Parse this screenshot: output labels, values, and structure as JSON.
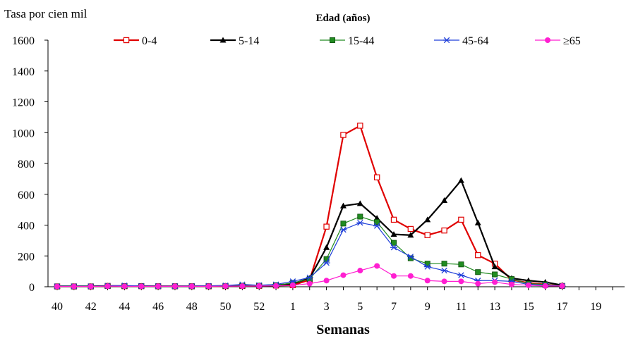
{
  "chart_data": {
    "type": "line",
    "ylabel": "Tasa por cien mil",
    "xlabel": "Semanas",
    "legend_title": "Edad (años)",
    "legend_placement": "top",
    "ylim": [
      0,
      1600
    ],
    "y_ticks": [
      0,
      200,
      400,
      600,
      800,
      1000,
      1200,
      1400,
      1600
    ],
    "x_tick_labels": [
      "40",
      "42",
      "44",
      "46",
      "48",
      "50",
      "52",
      "1",
      "3",
      "5",
      "7",
      "9",
      "11",
      "13",
      "15",
      "17",
      "19"
    ],
    "x": [
      "40",
      "41",
      "42",
      "43",
      "44",
      "45",
      "46",
      "47",
      "48",
      "49",
      "50",
      "51",
      "52",
      "53",
      "1",
      "2",
      "3",
      "4",
      "5",
      "6",
      "7",
      "8",
      "9",
      "10",
      "11",
      "12",
      "13",
      "14",
      "15",
      "16",
      "17"
    ],
    "grid": false,
    "series": [
      {
        "name": "0-4",
        "color": "#e00000",
        "marker": "open-square",
        "values": [
          2,
          2,
          2,
          5,
          4,
          4,
          3,
          3,
          3,
          3,
          4,
          5,
          6,
          8,
          10,
          45,
          390,
          985,
          1045,
          710,
          435,
          375,
          335,
          365,
          435,
          205,
          150,
          45,
          25,
          15,
          5
        ]
      },
      {
        "name": "5-14",
        "color": "#000000",
        "marker": "filled-triangle",
        "values": [
          3,
          3,
          3,
          5,
          4,
          4,
          3,
          3,
          3,
          4,
          5,
          6,
          7,
          10,
          20,
          55,
          255,
          525,
          540,
          445,
          340,
          335,
          435,
          560,
          690,
          415,
          130,
          55,
          40,
          30,
          10
        ]
      },
      {
        "name": "15-44",
        "color": "#218c21",
        "marker": "filled-square",
        "values": [
          2,
          2,
          2,
          5,
          4,
          4,
          3,
          3,
          3,
          3,
          5,
          6,
          7,
          10,
          25,
          50,
          180,
          410,
          455,
          420,
          285,
          185,
          150,
          150,
          145,
          95,
          80,
          50,
          20,
          15,
          5
        ]
      },
      {
        "name": "45-64",
        "color": "#1f3fd9",
        "marker": "asterisk",
        "values": [
          3,
          3,
          3,
          6,
          8,
          5,
          4,
          4,
          5,
          6,
          8,
          15,
          10,
          15,
          35,
          60,
          155,
          370,
          415,
          395,
          255,
          195,
          130,
          105,
          75,
          40,
          40,
          35,
          15,
          10,
          5
        ]
      },
      {
        "name": "≥65",
        "color": "#ff1fd1",
        "marker": "filled-circle",
        "values": [
          2,
          2,
          2,
          4,
          3,
          3,
          3,
          3,
          3,
          3,
          4,
          4,
          5,
          6,
          10,
          20,
          40,
          75,
          105,
          135,
          70,
          70,
          40,
          35,
          35,
          20,
          30,
          15,
          10,
          5,
          5
        ]
      }
    ]
  }
}
